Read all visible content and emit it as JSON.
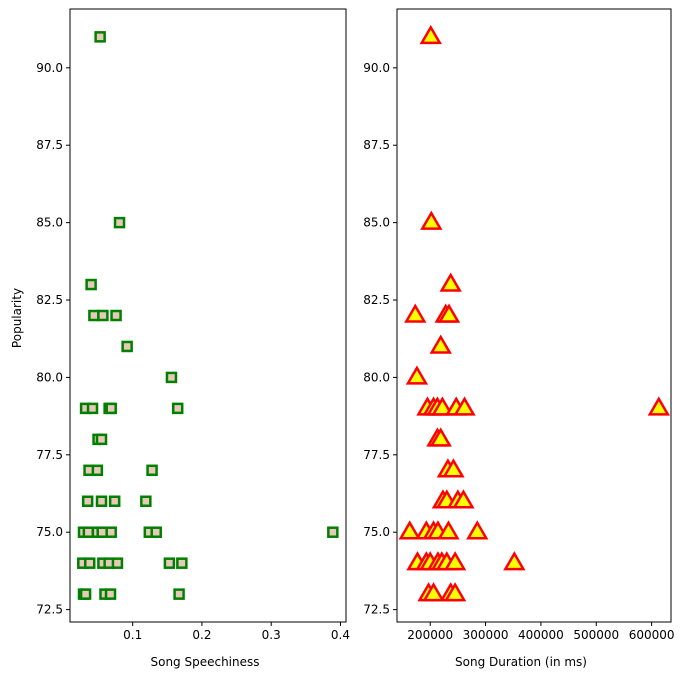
{
  "chart_data": [
    {
      "type": "scatter",
      "xlabel": "Song Speechiness",
      "ylabel": "Popularity",
      "xlim": [
        0.0095,
        0.408
      ],
      "ylim": [
        72.1,
        91.9
      ],
      "xticks": [
        0.1,
        0.2,
        0.3,
        0.4
      ],
      "xtick_labels": [
        "0.1",
        "0.2",
        "0.3",
        "0.4"
      ],
      "yticks": [
        72.5,
        75.0,
        77.5,
        80.0,
        82.5,
        85.0,
        87.5,
        90.0
      ],
      "ytick_labels": [
        "72.5",
        "75.0",
        "77.5",
        "80.0",
        "82.5",
        "85.0",
        "87.5",
        "90.0"
      ],
      "marker": "square",
      "marker_fill": "#e8c8b8",
      "marker_edge": "#008000",
      "points": [
        [
          0.053,
          91
        ],
        [
          0.081,
          85
        ],
        [
          0.04,
          83
        ],
        [
          0.044,
          82
        ],
        [
          0.057,
          82
        ],
        [
          0.076,
          82
        ],
        [
          0.092,
          81
        ],
        [
          0.156,
          80
        ],
        [
          0.032,
          79
        ],
        [
          0.042,
          79
        ],
        [
          0.066,
          79
        ],
        [
          0.069,
          79
        ],
        [
          0.165,
          79
        ],
        [
          0.05,
          78
        ],
        [
          0.055,
          78
        ],
        [
          0.037,
          77
        ],
        [
          0.049,
          77
        ],
        [
          0.128,
          77
        ],
        [
          0.035,
          76
        ],
        [
          0.055,
          76
        ],
        [
          0.074,
          76
        ],
        [
          0.119,
          76
        ],
        [
          0.029,
          75
        ],
        [
          0.036,
          75
        ],
        [
          0.049,
          75
        ],
        [
          0.056,
          75
        ],
        [
          0.069,
          75
        ],
        [
          0.124,
          75
        ],
        [
          0.134,
          75
        ],
        [
          0.389,
          75
        ],
        [
          0.028,
          74
        ],
        [
          0.038,
          74
        ],
        [
          0.057,
          74
        ],
        [
          0.066,
          74
        ],
        [
          0.078,
          74
        ],
        [
          0.153,
          74
        ],
        [
          0.171,
          74
        ],
        [
          0.029,
          73
        ],
        [
          0.032,
          73
        ],
        [
          0.06,
          73
        ],
        [
          0.068,
          73
        ],
        [
          0.167,
          73
        ]
      ]
    },
    {
      "type": "scatter",
      "xlabel": "Song Duration (in ms)",
      "ylabel": "",
      "xlim": [
        140000,
        635000
      ],
      "ylim": [
        72.1,
        91.9
      ],
      "xticks": [
        200000,
        300000,
        400000,
        500000,
        600000
      ],
      "xtick_labels": [
        "200000",
        "300000",
        "400000",
        "500000",
        "600000"
      ],
      "yticks": [
        72.5,
        75.0,
        77.5,
        80.0,
        82.5,
        85.0,
        87.5,
        90.0
      ],
      "ytick_labels": [
        "72.5",
        "75.0",
        "77.5",
        "80.0",
        "82.5",
        "85.0",
        "87.5",
        "90.0"
      ],
      "marker": "triangle",
      "marker_fill": "#ffff00",
      "marker_edge": "#ff0000",
      "points": [
        [
          201000,
          91
        ],
        [
          202000,
          85
        ],
        [
          237000,
          83
        ],
        [
          173000,
          82
        ],
        [
          228000,
          82
        ],
        [
          234000,
          82
        ],
        [
          219000,
          81
        ],
        [
          176000,
          80
        ],
        [
          195000,
          79
        ],
        [
          206000,
          79
        ],
        [
          213000,
          79
        ],
        [
          222000,
          79
        ],
        [
          247000,
          79
        ],
        [
          262000,
          79
        ],
        [
          613000,
          79
        ],
        [
          213000,
          78
        ],
        [
          219000,
          78
        ],
        [
          232000,
          77
        ],
        [
          242000,
          77
        ],
        [
          223000,
          76
        ],
        [
          230000,
          76
        ],
        [
          250000,
          76
        ],
        [
          260000,
          76
        ],
        [
          163000,
          75
        ],
        [
          193000,
          75
        ],
        [
          206000,
          75
        ],
        [
          214000,
          75
        ],
        [
          233000,
          75
        ],
        [
          285000,
          75
        ],
        [
          177000,
          74
        ],
        [
          193000,
          74
        ],
        [
          200000,
          74
        ],
        [
          214000,
          74
        ],
        [
          221000,
          74
        ],
        [
          230000,
          74
        ],
        [
          245000,
          74
        ],
        [
          352000,
          74
        ],
        [
          197000,
          73
        ],
        [
          206000,
          73
        ],
        [
          237000,
          73
        ],
        [
          245000,
          73
        ]
      ]
    }
  ]
}
